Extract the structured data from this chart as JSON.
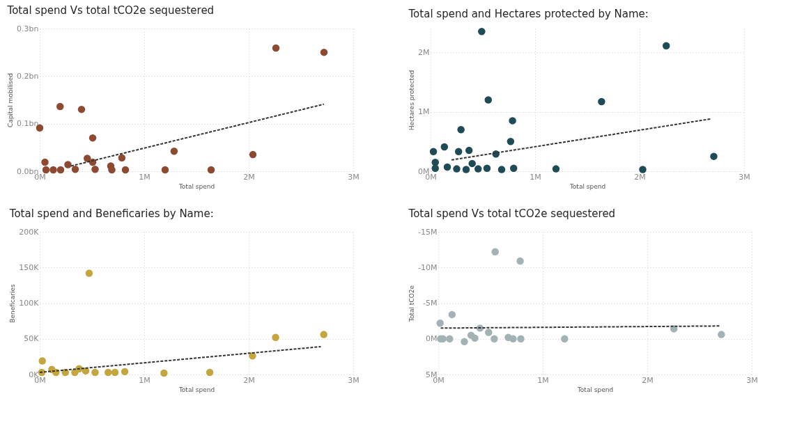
{
  "chart_data": [
    {
      "type": "scatter",
      "title": "Total spend Vs total tCO2e sequestered",
      "xlabel": "Total spend",
      "ylabel": "Capital mobilised",
      "grid": true,
      "xlim": [
        0,
        3
      ],
      "xticks": [
        {
          "value": 0,
          "label": "0M"
        },
        {
          "value": 1,
          "label": "1M"
        },
        {
          "value": 2,
          "label": "2M"
        },
        {
          "value": 3,
          "label": "3M"
        }
      ],
      "ylim": [
        0,
        0.3
      ],
      "yticks": [
        {
          "value": 0,
          "label": "0.0bn"
        },
        {
          "value": 0.1,
          "label": "0.1bn"
        },
        {
          "value": 0.2,
          "label": "0.2bn"
        },
        {
          "value": 0.3,
          "label": "0.3bn"
        }
      ],
      "series": [
        {
          "marker": "circle",
          "color": "#8c4a31",
          "x": [
            0,
            0.05,
            0.195,
            0.4,
            0.507,
            0.455,
            0.507,
            0.27,
            0.786,
            0.68,
            1.286,
            1.2,
            1.64,
            2.04,
            2.26,
            2.72,
            0.06,
            0.13,
            0.2,
            0.34,
            0.53,
            0.69,
            0.82
          ],
          "values": [
            0.091,
            0.019,
            0.136,
            0.13,
            0.07,
            0.027,
            0.019,
            0.014,
            0.028,
            0.011,
            0.042,
            0.003,
            0.003,
            0.035,
            0.259,
            0.25,
            0.003,
            0.003,
            0.003,
            0.004,
            0.004,
            0.003,
            0.003
          ]
        },
        {
          "type": "line",
          "line_style": "dashed",
          "color": "#333333",
          "x": [
            0.3,
            2.72
          ],
          "values": [
            0.011,
            0.141
          ]
        }
      ]
    },
    {
      "type": "scatter",
      "title": "Total spend and Hectares protected by Name:",
      "xlabel": "Total spend",
      "ylabel": "Hectares protected",
      "grid": true,
      "xlim": [
        0,
        3
      ],
      "xticks": [
        {
          "value": 0,
          "label": "0M"
        },
        {
          "value": 1,
          "label": "1M"
        },
        {
          "value": 2,
          "label": "2M"
        },
        {
          "value": 3,
          "label": "3M"
        }
      ],
      "ylim": [
        0,
        2.4
      ],
      "yticks": [
        {
          "value": 0,
          "label": "0M"
        },
        {
          "value": 1,
          "label": "1M"
        },
        {
          "value": 2,
          "label": "2M"
        }
      ],
      "series": [
        {
          "marker": "circle",
          "color": "#1e4b56",
          "x": [
            0.489,
            2.255,
            0.552,
            1.636,
            0.784,
            0.291,
            0.766,
            0.027,
            0.132,
            0.268,
            0.368,
            0.625,
            0.398,
            2.71,
            1.2,
            2.03,
            0.68,
            0.54,
            0.455,
            0.795,
            0.045,
            0.045,
            0.16,
            0.25,
            0.34
          ],
          "values": [
            2.35,
            2.11,
            1.2,
            1.17,
            0.85,
            0.7,
            0.5,
            0.33,
            0.41,
            0.33,
            0.35,
            0.29,
            0.13,
            0.25,
            0.04,
            0.03,
            0.03,
            0.05,
            0.04,
            0.05,
            0.15,
            0.05,
            0.07,
            0.04,
            0.03
          ]
        },
        {
          "type": "line",
          "line_style": "dashed",
          "color": "#333333",
          "x": [
            0.2,
            2.68
          ],
          "values": [
            0.19,
            0.88
          ]
        }
      ]
    },
    {
      "type": "scatter",
      "title": "Total spend and Beneficaries by Name:",
      "xlabel": "Total spend",
      "ylabel": "Beneficaries",
      "grid": true,
      "xlim": [
        0,
        3
      ],
      "xticks": [
        {
          "value": 0,
          "label": "0M"
        },
        {
          "value": 1,
          "label": "1M"
        },
        {
          "value": 2,
          "label": "2M"
        },
        {
          "value": 3,
          "label": "3M"
        }
      ],
      "ylim": [
        0,
        200
      ],
      "yticks": [
        {
          "value": 0,
          "label": "0K"
        },
        {
          "value": 50,
          "label": "50K"
        },
        {
          "value": 100,
          "label": "100K"
        },
        {
          "value": 150,
          "label": "150K"
        },
        {
          "value": 200,
          "label": "200K"
        }
      ],
      "series": [
        {
          "marker": "circle",
          "color": "#c4a63f",
          "x": [
            0.473,
            0.025,
            2.257,
            2.718,
            2.036,
            1.189,
            1.627,
            0.116,
            0.377,
            0.44,
            0.53,
            0.655,
            0.72,
            0.814,
            0.02,
            0.155,
            0.245,
            0.336
          ],
          "values": [
            142,
            19,
            52,
            56,
            26,
            2,
            3,
            7,
            8,
            5,
            3,
            3,
            3,
            4,
            3,
            3,
            3,
            3
          ]
        },
        {
          "type": "line",
          "line_style": "dashed",
          "color": "#333333",
          "x": [
            0,
            2.69
          ],
          "values": [
            3,
            39
          ]
        }
      ]
    },
    {
      "type": "scatter",
      "title": "Total spend Vs total tCO2e sequestered",
      "xlabel": "Total spend",
      "ylabel": "Total tCO2e",
      "grid": true,
      "xlim": [
        0,
        3
      ],
      "xticks": [
        {
          "value": 0,
          "label": "0M"
        },
        {
          "value": 1,
          "label": "1M"
        },
        {
          "value": 2,
          "label": "2M"
        },
        {
          "value": 3,
          "label": "3M"
        }
      ],
      "ylim": [
        5,
        -15
      ],
      "yticks": [
        {
          "value": -15,
          "label": "-15M"
        },
        {
          "value": -10,
          "label": "-10M"
        },
        {
          "value": -5,
          "label": "-5M"
        },
        {
          "value": 0,
          "label": "0M"
        },
        {
          "value": 5,
          "label": "5M"
        }
      ],
      "series": [
        {
          "marker": "circle",
          "color": "#a3b3b5",
          "x": [
            0.545,
            0.784,
            0.132,
            0.018,
            0.4,
            0.482,
            0.314,
            2.255,
            2.709,
            0.25,
            0.35,
            0.536,
            0.67,
            0.716,
            0.79,
            1.209,
            0.023,
            0.045,
            0.109
          ],
          "values": [
            -12.2,
            -10.9,
            -3.4,
            -2.2,
            -1.5,
            -0.9,
            -0.5,
            -1.4,
            -0.6,
            0.4,
            -0.1,
            0,
            -0.2,
            0,
            0,
            0,
            0,
            0,
            0
          ]
        },
        {
          "type": "line",
          "line_style": "dashed",
          "color": "#333333",
          "x": [
            0.023,
            2.7
          ],
          "values": [
            -1.5,
            -1.8
          ]
        }
      ]
    }
  ]
}
